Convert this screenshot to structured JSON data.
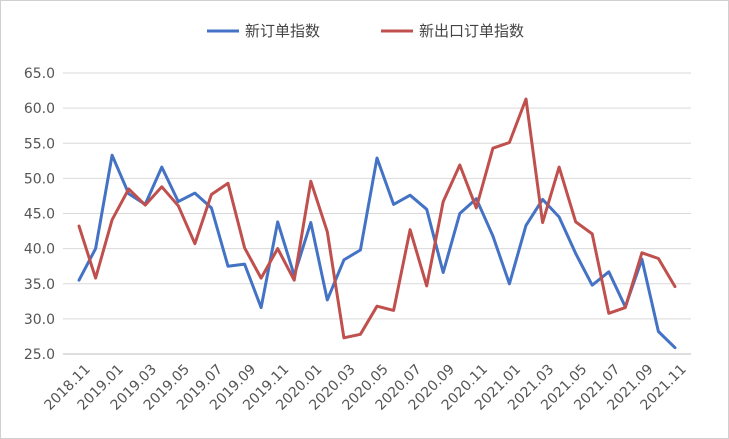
{
  "chart_data": {
    "type": "line",
    "title": "",
    "xlabel": "",
    "ylabel": "",
    "ylim": [
      25,
      65
    ],
    "yticks": [
      25,
      30,
      35,
      40,
      45,
      50,
      55,
      60,
      65
    ],
    "ytick_labels": [
      "25.0",
      "30.0",
      "35.0",
      "40.0",
      "45.0",
      "50.0",
      "55.0",
      "60.0",
      "65.0"
    ],
    "grid": true,
    "legend_position": "top-center",
    "x": [
      "2018.11",
      "2018.12",
      "2019.01",
      "2019.02",
      "2019.03",
      "2019.04",
      "2019.05",
      "2019.06",
      "2019.07",
      "2019.08",
      "2019.09",
      "2019.10",
      "2019.11",
      "2019.12",
      "2020.01",
      "2020.02",
      "2020.03",
      "2020.04",
      "2020.05",
      "2020.06",
      "2020.07",
      "2020.08",
      "2020.09",
      "2020.10",
      "2020.11",
      "2020.12",
      "2021.01",
      "2021.02",
      "2021.03",
      "2021.04",
      "2021.05",
      "2021.06",
      "2021.07",
      "2021.08",
      "2021.09",
      "2021.10",
      "2021.11"
    ],
    "xtick_labels": [
      "2018.11",
      "2019.01",
      "2019.03",
      "2019.05",
      "2019.07",
      "2019.09",
      "2019.11",
      "2020.01",
      "2020.03",
      "2020.05",
      "2020.07",
      "2020.09",
      "2020.11",
      "2021.01",
      "2021.03",
      "2021.05",
      "2021.07",
      "2021.09",
      "2021.11"
    ],
    "series": [
      {
        "name": "新订单指数",
        "color": "#4472C4",
        "values": [
          35.5,
          40.0,
          53.3,
          47.8,
          46.3,
          51.6,
          46.7,
          47.9,
          45.8,
          37.5,
          37.8,
          31.6,
          43.8,
          36.2,
          43.7,
          32.7,
          38.4,
          39.8,
          52.9,
          46.3,
          47.6,
          45.6,
          36.6,
          45.0,
          47.1,
          41.8,
          35.0,
          43.3,
          47.0,
          44.5,
          39.3,
          34.8,
          36.7,
          31.7,
          38.5,
          28.2,
          25.9
        ]
      },
      {
        "name": "新出口订单指数",
        "color": "#C0504D",
        "values": [
          43.2,
          35.8,
          44.1,
          48.5,
          46.2,
          48.8,
          46.1,
          40.7,
          47.7,
          49.3,
          40.1,
          35.8,
          40.0,
          35.5,
          49.6,
          42.4,
          27.3,
          27.8,
          31.8,
          31.2,
          42.7,
          34.7,
          46.7,
          51.9,
          45.8,
          54.3,
          55.1,
          61.3,
          43.7,
          51.6,
          43.8,
          42.1,
          30.8,
          31.6,
          39.4,
          38.6,
          34.6
        ]
      }
    ]
  }
}
